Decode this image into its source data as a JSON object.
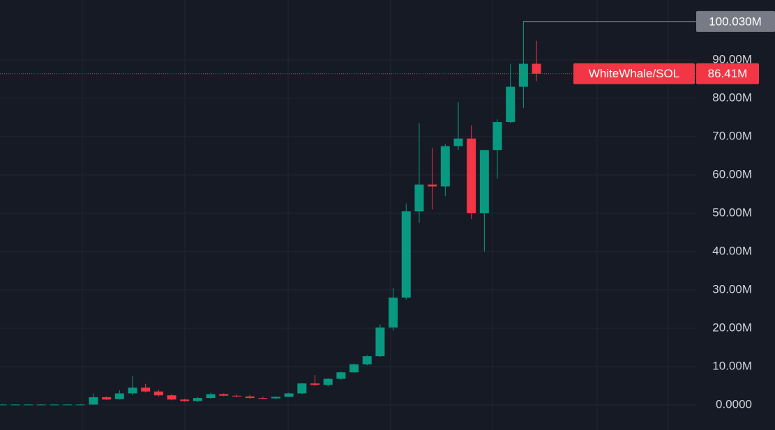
{
  "chart_data": {
    "type": "candlestick",
    "series": [
      {
        "name": "WhiteWhale/SOL"
      }
    ],
    "up_color": "#089981",
    "down_color": "#f23645",
    "open": [
      0,
      0,
      0,
      0,
      0,
      0,
      0,
      0.1,
      2,
      1.5,
      3,
      4.5,
      3.5,
      2.5,
      1.4,
      1,
      1.8,
      2.8,
      2.4,
      2.2,
      1.8,
      1.7,
      2.1,
      3,
      5.6,
      5.2,
      6.8,
      8.5,
      10.6,
      12.7,
      20.2,
      28,
      50.5,
      57.5,
      57,
      67.5,
      69.5,
      50,
      66.5,
      73.8,
      83,
      89
    ],
    "high": [
      0.2,
      0.2,
      0.2,
      0.2,
      0.2,
      0.2,
      0.2,
      3,
      2.2,
      3.8,
      7.5,
      5.5,
      4,
      2.8,
      1.6,
      2,
      3.2,
      3,
      2.7,
      2.6,
      2.1,
      2.3,
      3.2,
      5.7,
      7.8,
      7,
      8.7,
      10.8,
      13,
      21,
      30.5,
      52.5,
      73.5,
      67,
      68,
      79,
      73,
      66.5,
      74.5,
      89,
      100.03,
      95
    ],
    "low": [
      0,
      0,
      0,
      0,
      0,
      0,
      0,
      0,
      1.3,
      1.4,
      2.5,
      3.2,
      2.2,
      1.2,
      0.8,
      0.8,
      1.6,
      2.3,
      2,
      1.6,
      1.5,
      1.5,
      2,
      2.8,
      4.9,
      4.8,
      6.5,
      8.3,
      10.3,
      12.5,
      19.3,
      27.5,
      47.5,
      51,
      54.5,
      66.5,
      48.5,
      40,
      59,
      73.5,
      77.5,
      84.5
    ],
    "close": [
      0.1,
      0.1,
      0.1,
      0.1,
      0.1,
      0.1,
      0.1,
      2,
      1.4,
      3,
      4.5,
      3.5,
      2.5,
      1.4,
      1,
      1.8,
      2.8,
      2.4,
      2.2,
      1.8,
      1.7,
      2.1,
      3,
      5.6,
      5.2,
      6.8,
      8.5,
      10.6,
      12.7,
      20.2,
      28,
      50.5,
      57.5,
      57,
      67.5,
      69.5,
      50,
      66.5,
      73.8,
      83,
      89,
      86.41
    ],
    "ylim": [
      -6.55,
      105.64
    ],
    "yticks": [
      {
        "value": 0,
        "label": "0.0000"
      },
      {
        "value": 10,
        "label": "10.00M"
      },
      {
        "value": 20,
        "label": "20.00M"
      },
      {
        "value": 30,
        "label": "30.00M"
      },
      {
        "value": 40,
        "label": "40.00M"
      },
      {
        "value": 50,
        "label": "50.00M"
      },
      {
        "value": 60,
        "label": "60.00M"
      },
      {
        "value": 70,
        "label": "70.00M"
      },
      {
        "value": 80,
        "label": "80.00M"
      },
      {
        "value": 90,
        "label": "90.00M"
      }
    ],
    "grid": true,
    "last_price": {
      "value": 86.41,
      "label": "86.41M"
    },
    "high_marker": {
      "value": 100.03,
      "label": "100.030M"
    }
  }
}
